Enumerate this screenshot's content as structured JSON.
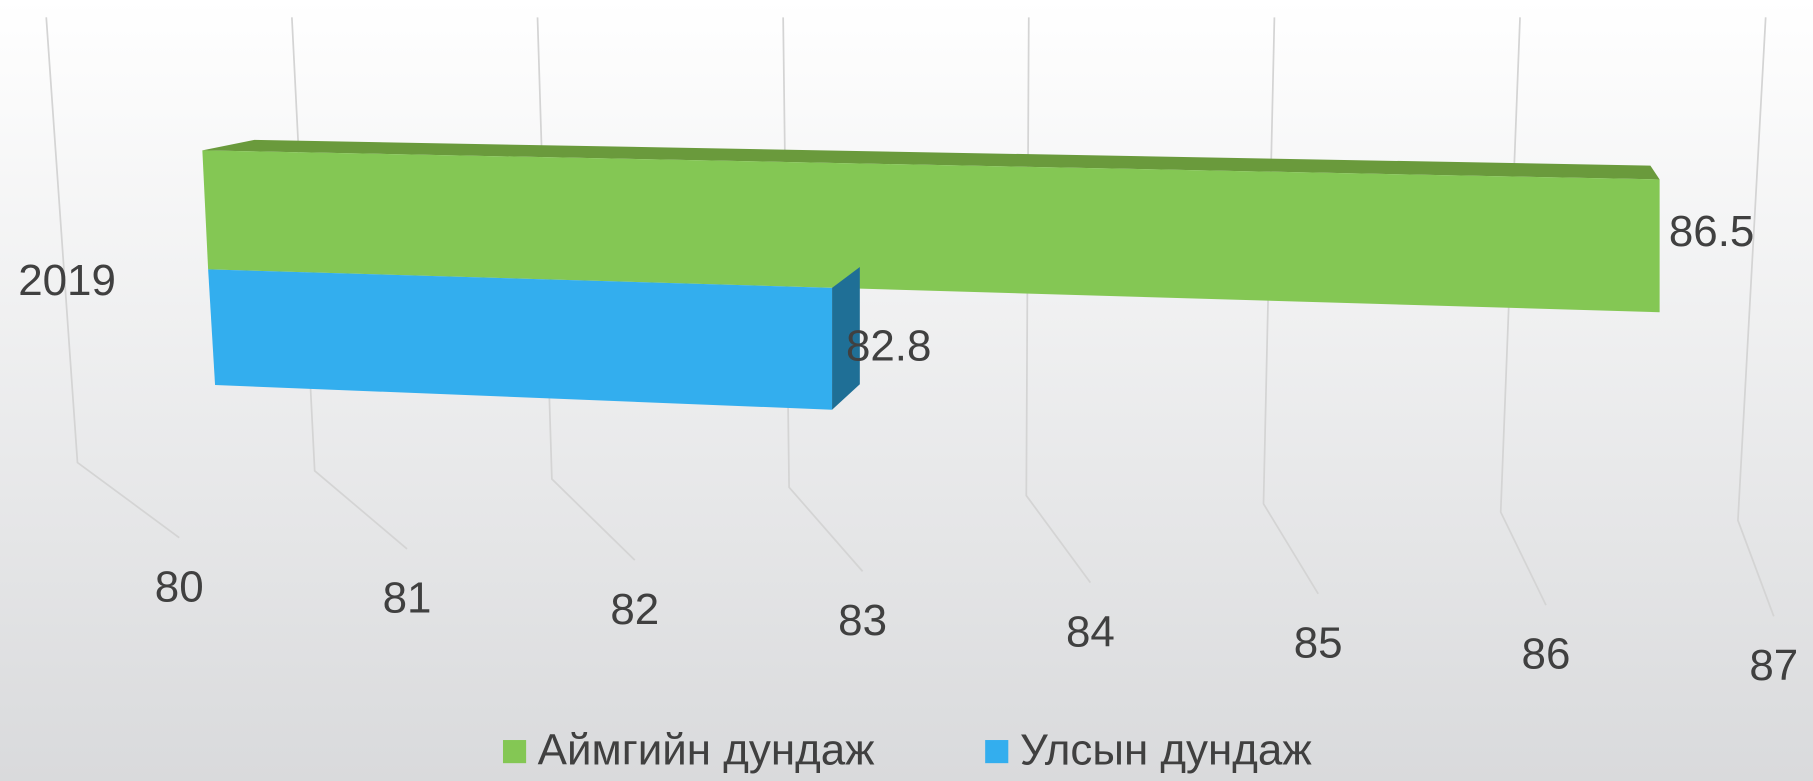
{
  "chart_data": {
    "type": "bar3d",
    "orientation": "horizontal",
    "categories": [
      "2019"
    ],
    "series": [
      {
        "name": "Аймгийн дундаж",
        "color": "#84c754",
        "values": [
          86.5
        ]
      },
      {
        "name": "Улсын дундаж",
        "color": "#33aeee",
        "values": [
          82.8
        ]
      }
    ],
    "xlim": [
      80,
      87
    ],
    "xticks": [
      80,
      81,
      82,
      83,
      84,
      85,
      86,
      87
    ],
    "grid": true,
    "legend": "bottom"
  }
}
